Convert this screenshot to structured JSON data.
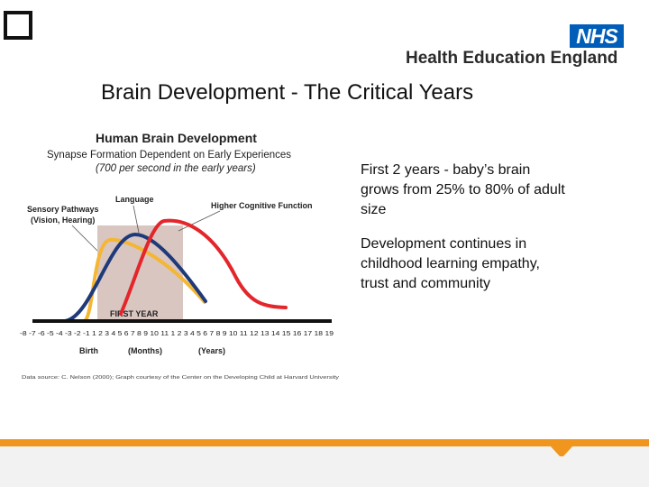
{
  "header": {
    "nhs_logo": "NHS",
    "org_name": "Health Education England"
  },
  "slide": {
    "title": "Brain Development  - The Critical Years"
  },
  "figure": {
    "title": "Human Brain Development",
    "subtitle": "Synapse Formation Dependent on Early Experiences",
    "subtitle2": "(700 per second in the early years)",
    "label_sensory_1": "Sensory Pathways",
    "label_sensory_2": "(Vision, Hearing)",
    "label_language": "Language",
    "label_higher": "Higher Cognitive Function",
    "first_year_label": "FIRST YEAR",
    "axis_numbers": "-8 -7 -6 -5 -4 -3 -2 -1  1 2 3 4 5 6 7 8 9 10 11 1 2 3 4 5 6 7 8 9 10 11 12 13 14 15 16 17 18 19",
    "axis_birth": "Birth",
    "axis_months": "(Months)",
    "axis_years": "(Years)",
    "source": "Data source: C. Nelson (2000); Graph courtesy of the Center on the Developing Child at Harvard University",
    "colors": {
      "sensory": "#f5b635",
      "language": "#1f3a7a",
      "higher": "#e3262b",
      "shade": "#d9c6c1"
    }
  },
  "bullets": [
    "First 2 years - baby’s brain grows from 25% to 80% of adult size",
    "Development continues in childhood learning empathy, trust and community"
  ]
}
